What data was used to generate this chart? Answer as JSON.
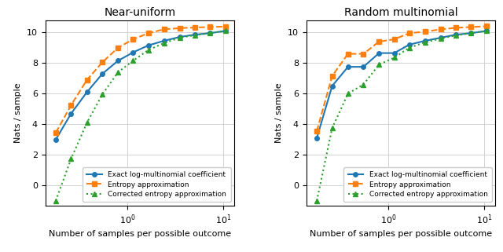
{
  "titles": [
    "Near-uniform",
    "Random multinomial"
  ],
  "xlabel": "Number of samples per possible outcome",
  "ylabel": "Nats / sample",
  "ylim": [
    -1.3,
    10.8
  ],
  "yticks": [
    0,
    2,
    4,
    6,
    8,
    10
  ],
  "xlim_lo": 0.14,
  "xlim_hi": 13.0,
  "legend_labels": [
    "Exact log-multinomial coefficient",
    "Entropy approximation",
    "Corrected entropy approximation"
  ],
  "x_vals": [
    0.18,
    0.26,
    0.38,
    0.55,
    0.8,
    1.15,
    1.65,
    2.4,
    3.5,
    5.0,
    7.2,
    10.5
  ],
  "left_exact": [
    3.0,
    4.7,
    6.1,
    7.3,
    8.15,
    8.7,
    9.15,
    9.45,
    9.7,
    9.85,
    9.95,
    10.1
  ],
  "left_entropy": [
    3.45,
    5.25,
    6.9,
    8.05,
    9.0,
    9.55,
    9.95,
    10.2,
    10.28,
    10.32,
    10.35,
    10.38
  ],
  "left_corrected": [
    -1.0,
    1.75,
    4.1,
    5.95,
    7.4,
    8.15,
    8.85,
    9.3,
    9.65,
    9.82,
    9.95,
    10.1
  ],
  "right_exact": [
    3.1,
    6.5,
    7.75,
    7.75,
    8.65,
    8.65,
    9.2,
    9.45,
    9.65,
    9.85,
    9.95,
    10.1
  ],
  "right_entropy": [
    3.55,
    7.15,
    8.6,
    8.6,
    9.4,
    9.55,
    9.95,
    10.05,
    10.2,
    10.3,
    10.35,
    10.4
  ],
  "right_corrected": [
    -1.0,
    3.75,
    6.0,
    6.6,
    7.9,
    8.35,
    9.0,
    9.35,
    9.6,
    9.8,
    9.95,
    10.1
  ],
  "color_exact": "#1f77b4",
  "color_entropy": "#ff7f0e",
  "color_corrected": "#2ca02c"
}
